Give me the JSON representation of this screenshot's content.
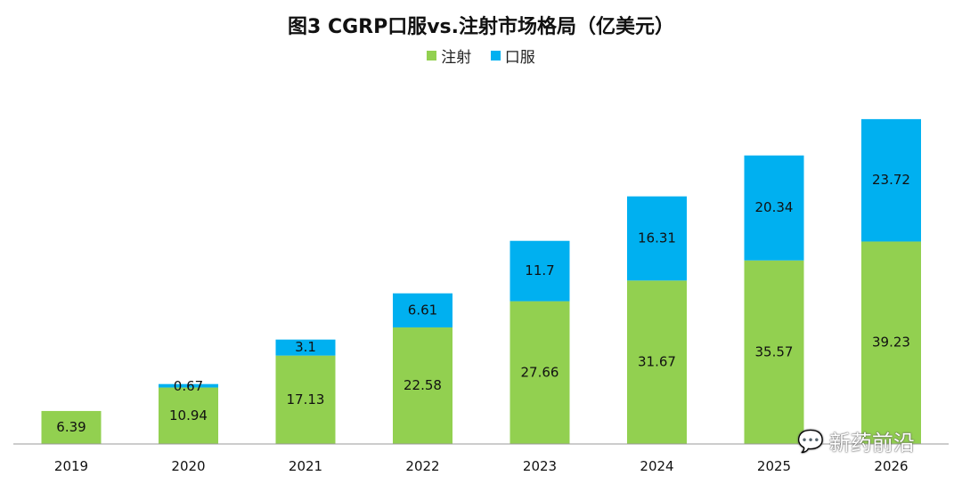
{
  "chart_data": {
    "type": "bar",
    "stacked": true,
    "title": "图3 CGRP口服vs.注射市场格局（亿美元）",
    "xlabel": "",
    "ylabel": "",
    "categories": [
      "2019",
      "2020",
      "2021",
      "2022",
      "2023",
      "2024",
      "2025",
      "2026"
    ],
    "series": [
      {
        "name": "注射",
        "color": "#92D050",
        "values": [
          6.39,
          10.94,
          17.13,
          22.58,
          27.66,
          31.67,
          35.57,
          39.23
        ]
      },
      {
        "name": "口服",
        "color": "#00B0F0",
        "values": [
          null,
          0.67,
          3.1,
          6.61,
          11.7,
          16.31,
          20.34,
          23.72
        ]
      }
    ],
    "ylim": [
      0,
      63
    ],
    "grid": false,
    "legend": "top-center"
  },
  "watermark": {
    "text": "新药前沿",
    "icon": "wechat-icon"
  }
}
